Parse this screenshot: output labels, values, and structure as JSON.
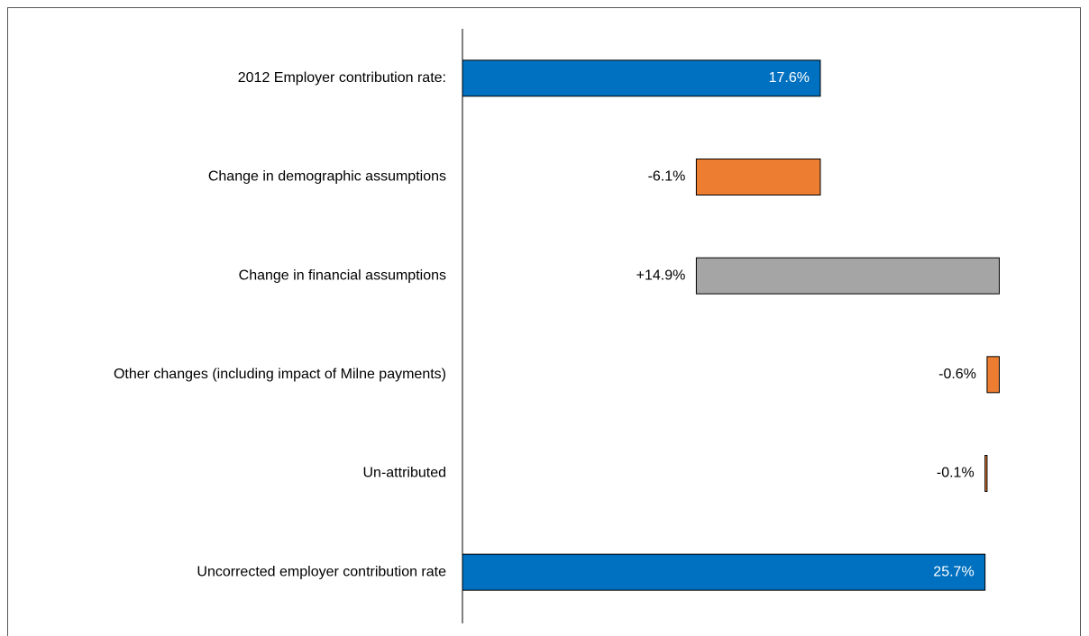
{
  "chart_data": {
    "type": "waterfall",
    "categories": [
      "2012 Employer contribution rate:",
      "Change in demographic assumptions",
      "Change in financial assumptions",
      "Other changes (including impact of Milne payments)",
      "Un-attributed",
      "Uncorrected employer contribution rate"
    ],
    "values": [
      17.6,
      -6.1,
      14.9,
      -0.6,
      -0.1,
      25.7
    ],
    "value_labels": [
      "17.6%",
      "-6.1%",
      "+14.9%",
      "-0.6%",
      "-0.1%",
      "25.7%"
    ],
    "totals": [
      true,
      false,
      false,
      false,
      false,
      true
    ],
    "colors": [
      "#0070c0",
      "#ed7d31",
      "#a5a5a5",
      "#ed7d31",
      "#ed7d31",
      "#0070c0"
    ],
    "xlim": [
      0,
      27
    ]
  }
}
